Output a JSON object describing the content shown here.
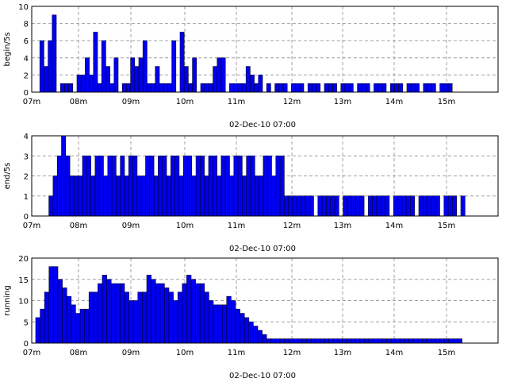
{
  "chart_data": [
    {
      "type": "bar",
      "ylabel": "begin/5s",
      "xlabel": "02-Dec-10 07:00",
      "ylim": [
        0,
        10
      ],
      "yticks": [
        0,
        2,
        4,
        6,
        8,
        10
      ],
      "xticks": [
        "07m",
        "08m",
        "09m",
        "10m",
        "11m",
        "12m",
        "13m",
        "14m",
        "15m"
      ],
      "grid": true,
      "bar_color": "#0000ee",
      "values": [
        0,
        6,
        3,
        6,
        9,
        0,
        1,
        1,
        1,
        0,
        2,
        2,
        4,
        2,
        7,
        1,
        6,
        3,
        1,
        4,
        0,
        1,
        1,
        4,
        3,
        4,
        6,
        1,
        1,
        3,
        1,
        1,
        1,
        6,
        0,
        7,
        3,
        1,
        4,
        0,
        1,
        1,
        1,
        3,
        4,
        4,
        0,
        1,
        1,
        1,
        1,
        3,
        2,
        1,
        2,
        0,
        1,
        0,
        1,
        1,
        1,
        0,
        1,
        1,
        1,
        0,
        1,
        1,
        1,
        0,
        1,
        1,
        1,
        0,
        1,
        1,
        1,
        0,
        1,
        1,
        1,
        0,
        1,
        1,
        1,
        0,
        1,
        1,
        1,
        0,
        1,
        1,
        1,
        0,
        1,
        1,
        1,
        0,
        1,
        1,
        1
      ]
    },
    {
      "type": "bar",
      "ylabel": "end/5s",
      "xlabel": "02-Dec-10 07:00",
      "ylim": [
        0,
        4
      ],
      "yticks": [
        0,
        1,
        2,
        3,
        4
      ],
      "xticks": [
        "07m",
        "08m",
        "09m",
        "10m",
        "11m",
        "12m",
        "13m",
        "14m",
        "15m"
      ],
      "grid": true,
      "bar_color": "#0000ee",
      "values": [
        0,
        0,
        1,
        2,
        3,
        4,
        3,
        2,
        2,
        2,
        3,
        3,
        2,
        3,
        3,
        2,
        3,
        3,
        2,
        3,
        2,
        3,
        3,
        2,
        2,
        3,
        3,
        2,
        3,
        3,
        2,
        3,
        3,
        2,
        3,
        3,
        2,
        3,
        3,
        2,
        3,
        3,
        2,
        3,
        3,
        2,
        3,
        3,
        2,
        3,
        3,
        2,
        2,
        3,
        3,
        2,
        3,
        3,
        1,
        1,
        1,
        1,
        1,
        1,
        1,
        0,
        1,
        1,
        1,
        1,
        1,
        0,
        1,
        1,
        1,
        1,
        1,
        0,
        1,
        1,
        1,
        1,
        1,
        0,
        1,
        1,
        1,
        1,
        1,
        0,
        1,
        1,
        1,
        1,
        1,
        0,
        1,
        1,
        1,
        0,
        1
      ]
    },
    {
      "type": "bar",
      "ylabel": "running",
      "xlabel": "02-Dec-10 07:00",
      "ylim": [
        0,
        20
      ],
      "yticks": [
        0,
        5,
        10,
        15,
        20
      ],
      "xticks": [
        "07m",
        "08m",
        "09m",
        "10m",
        "11m",
        "12m",
        "13m",
        "14m",
        "15m"
      ],
      "grid": true,
      "bar_color": "#0000ee",
      "values": [
        6,
        8,
        12,
        18,
        18,
        15,
        13,
        11,
        9,
        7,
        8,
        8,
        12,
        12,
        14,
        16,
        15,
        14,
        14,
        14,
        12,
        10,
        10,
        12,
        12,
        16,
        15,
        14,
        14,
        13,
        12,
        10,
        12,
        14,
        16,
        15,
        14,
        14,
        12,
        10,
        9,
        9,
        9,
        11,
        10,
        8,
        7,
        6,
        5,
        4,
        3,
        2,
        1,
        1,
        1,
        1,
        1,
        1,
        1,
        1,
        1,
        1,
        1,
        1,
        1,
        1,
        1,
        1,
        1,
        1,
        1,
        1,
        1,
        1,
        1,
        1,
        1,
        1,
        1,
        1,
        1,
        1,
        1,
        1,
        1,
        1,
        1,
        1,
        1,
        1,
        1,
        1,
        1,
        1,
        1,
        1
      ]
    }
  ]
}
